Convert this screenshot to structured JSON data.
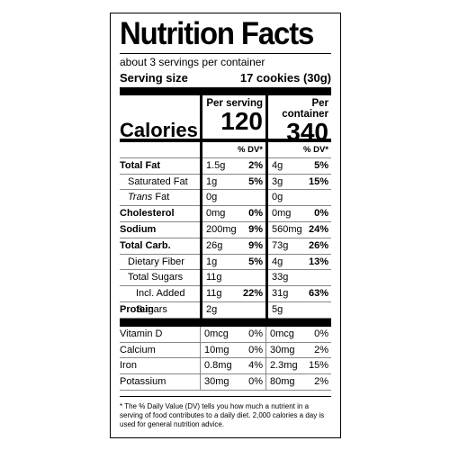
{
  "title": "Nutrition Facts",
  "servings": "about 3 servings per container",
  "serving_size": {
    "label": "Serving size",
    "value": "17 cookies (30g)"
  },
  "columns": [
    "Per serving",
    "Per container"
  ],
  "calories": {
    "label": "Calories",
    "values": [
      "120",
      "340"
    ]
  },
  "dv_header": [
    "% DV*",
    "% DV*"
  ],
  "nutrients": [
    {
      "name": "Total Fat",
      "bold": true,
      "indent": 0,
      "serving": [
        "1.5g",
        "2%"
      ],
      "container": [
        "4g",
        "5%"
      ]
    },
    {
      "name": "Saturated Fat",
      "bold": false,
      "indent": 1,
      "serving": [
        "1g",
        "5%"
      ],
      "container": [
        "3g",
        "15%"
      ]
    },
    {
      "name_italic": "Trans",
      "name": "Fat",
      "bold": false,
      "indent": 1,
      "serving": [
        "0g"
      ],
      "container": [
        "0g"
      ]
    },
    {
      "name": "Cholesterol",
      "bold": true,
      "indent": 0,
      "serving": [
        "0mg",
        "0%"
      ],
      "container": [
        "0mg",
        "0%"
      ]
    },
    {
      "name": "Sodium",
      "bold": true,
      "indent": 0,
      "serving": [
        "200mg",
        "9%"
      ],
      "container": [
        "560mg",
        "24%"
      ]
    },
    {
      "name": "Total Carb.",
      "bold": true,
      "indent": 0,
      "serving": [
        "26g",
        "9%"
      ],
      "container": [
        "73g",
        "26%"
      ]
    },
    {
      "name": "Dietary Fiber",
      "bold": false,
      "indent": 1,
      "serving": [
        "1g",
        "5%"
      ],
      "container": [
        "4g",
        "13%"
      ]
    },
    {
      "name": "Total Sugars",
      "bold": false,
      "indent": 1,
      "serving": [
        "11g"
      ],
      "container": [
        "33g"
      ]
    },
    {
      "name": "Incl. Added Sugars",
      "bold": false,
      "indent": 2,
      "serving": [
        "11g",
        "22%"
      ],
      "container": [
        "31g",
        "63%"
      ]
    },
    {
      "name": "Protein",
      "bold": true,
      "indent": 0,
      "serving": [
        "2g"
      ],
      "container": [
        "5g"
      ]
    }
  ],
  "vitamins": [
    {
      "name": "Vitamin D",
      "serving": [
        "0mcg",
        "0%"
      ],
      "container": [
        "0mcg",
        "0%"
      ]
    },
    {
      "name": "Calcium",
      "serving": [
        "10mg",
        "0%"
      ],
      "container": [
        "30mg",
        "2%"
      ]
    },
    {
      "name": "Iron",
      "serving": [
        "0.8mg",
        "4%"
      ],
      "container": [
        "2.3mg",
        "15%"
      ]
    },
    {
      "name": "Potassium",
      "serving": [
        "30mg",
        "0%"
      ],
      "container": [
        "80mg",
        "2%"
      ]
    }
  ],
  "footnote": "* The % Daily Value (DV) tells you how much a nutrient in a serving of food contributes to a daily diet. 2,000 calories a day is used for general nutrition advice."
}
